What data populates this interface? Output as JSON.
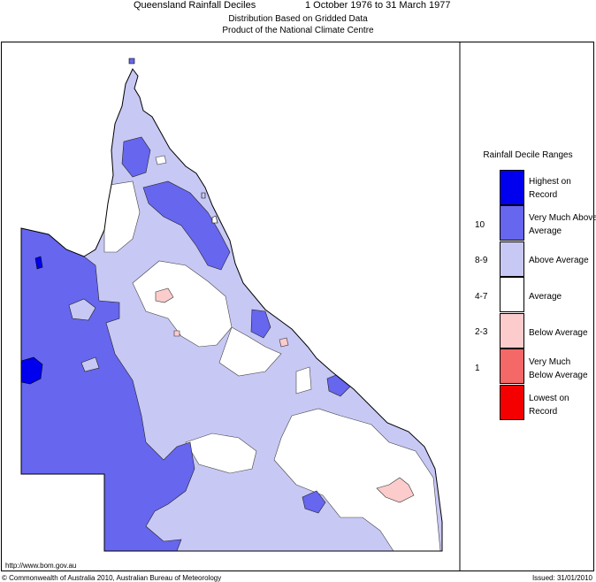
{
  "header": {
    "title": "Queensland Rainfall Deciles",
    "period": "1 October 1976 to 31 March 1977",
    "subtitle1": "Distribution Based on Gridded Data",
    "subtitle2": "Product of the National Climate Centre"
  },
  "legend": {
    "title": "Rainfall Decile Ranges",
    "items": [
      {
        "label": "Highest on Record",
        "range": "",
        "color": "#0000ee"
      },
      {
        "label": "Very Much Above Average",
        "range": "10",
        "color": "#6666ee"
      },
      {
        "label": "Above Average",
        "range": "8-9",
        "color": "#c8c8f5"
      },
      {
        "label": "Average",
        "range": "4-7",
        "color": "#ffffff"
      },
      {
        "label": "Below Average",
        "range": "2-3",
        "color": "#fccccc"
      },
      {
        "label": "Very Much Below Average",
        "range": "1",
        "color": "#f46868"
      },
      {
        "label": "Lowest on Record",
        "range": "",
        "color": "#f40000"
      }
    ]
  },
  "footer": {
    "url": "http://www.bom.gov.au",
    "copyright": "© Commonwealth of Australia 2010, Australian Bureau of Meteorology",
    "issued": "Issued: 31/01/2010"
  }
}
